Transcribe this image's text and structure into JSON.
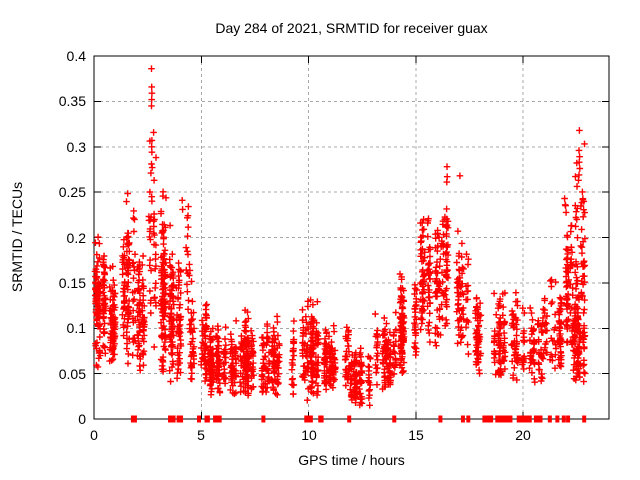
{
  "title": "Day 284 of 2021, SRMTID for receiver guax",
  "chart_data": {
    "type": "scatter",
    "title": "Day 284 of 2021, SRMTID for receiver guax",
    "xlabel": "GPS time / hours",
    "ylabel": "SRMTID / TECUs",
    "xlim": [
      0,
      24
    ],
    "ylim": [
      0,
      0.4
    ],
    "xticks": [
      0,
      5,
      10,
      15,
      20
    ],
    "yticks": [
      0,
      0.05,
      0.1,
      0.15,
      0.2,
      0.25,
      0.3,
      0.35,
      0.4
    ],
    "grid": "dashed",
    "grid_color": "#a8a8a8",
    "marker": "plus",
    "marker_color": "#ff0000",
    "axis_color": "#000000",
    "seed": 20211284,
    "density_bins": [
      [
        0.03,
        0.7,
        140,
        0.13,
        0.032,
        0.05,
        0.21
      ],
      [
        0.7,
        1.2,
        80,
        0.1,
        0.03,
        0.05,
        0.17
      ],
      [
        1.2,
        1.9,
        110,
        0.15,
        0.045,
        0.06,
        0.25
      ],
      [
        1.9,
        2.4,
        80,
        0.11,
        0.035,
        0.05,
        0.18
      ],
      [
        2.55,
        2.85,
        40,
        0.17,
        0.07,
        0.07,
        0.33
      ],
      [
        2.85,
        3.4,
        110,
        0.13,
        0.05,
        0.05,
        0.26
      ],
      [
        3.4,
        4.3,
        120,
        0.1,
        0.045,
        0.04,
        0.23
      ],
      [
        4.3,
        5.2,
        95,
        0.08,
        0.03,
        0.04,
        0.165
      ],
      [
        4.33,
        4.47,
        16,
        0.17,
        0.04,
        0.11,
        0.235
      ],
      [
        5.2,
        7.0,
        210,
        0.06,
        0.02,
        0.025,
        0.11
      ],
      [
        7.0,
        9.3,
        250,
        0.062,
        0.022,
        0.025,
        0.12
      ],
      [
        9.3,
        10.6,
        140,
        0.07,
        0.03,
        0.02,
        0.135
      ],
      [
        10.6,
        11.9,
        130,
        0.062,
        0.022,
        0.03,
        0.105
      ],
      [
        11.9,
        13.1,
        115,
        0.045,
        0.018,
        0.015,
        0.08
      ],
      [
        13.1,
        14.2,
        105,
        0.07,
        0.025,
        0.03,
        0.12
      ],
      [
        14.2,
        15.2,
        115,
        0.1,
        0.03,
        0.05,
        0.17
      ],
      [
        15.2,
        16.2,
        130,
        0.15,
        0.035,
        0.08,
        0.225
      ],
      [
        16.2,
        16.7,
        55,
        0.17,
        0.04,
        0.1,
        0.255
      ],
      [
        16.7,
        17.5,
        70,
        0.13,
        0.04,
        0.07,
        0.22
      ],
      [
        17.5,
        18.5,
        60,
        0.09,
        0.025,
        0.05,
        0.135
      ],
      [
        18.5,
        19.8,
        130,
        0.085,
        0.027,
        0.04,
        0.145
      ],
      [
        19.8,
        20.9,
        80,
        0.08,
        0.025,
        0.04,
        0.125
      ],
      [
        20.9,
        21.8,
        80,
        0.09,
        0.03,
        0.045,
        0.155
      ],
      [
        21.8,
        22.35,
        65,
        0.15,
        0.045,
        0.08,
        0.245
      ],
      [
        22.35,
        22.85,
        55,
        0.19,
        0.055,
        0.1,
        0.32
      ],
      [
        22.3,
        23.25,
        110,
        0.08,
        0.028,
        0.04,
        0.135
      ]
    ],
    "outlier_points": [
      [
        2.68,
        0.386
      ],
      [
        2.69,
        0.366
      ],
      [
        2.7,
        0.359
      ],
      [
        2.69,
        0.352
      ],
      [
        2.68,
        0.345
      ],
      [
        2.7,
        0.307
      ],
      [
        2.69,
        0.3
      ],
      [
        2.7,
        0.294
      ],
      [
        2.68,
        0.281
      ],
      [
        2.71,
        0.277
      ],
      [
        2.69,
        0.245
      ],
      [
        2.7,
        0.24
      ],
      [
        4.11,
        0.241
      ],
      [
        4.13,
        0.231
      ],
      [
        4.4,
        0.234
      ],
      [
        4.38,
        0.224
      ],
      [
        16.45,
        0.278
      ],
      [
        16.46,
        0.267
      ],
      [
        16.44,
        0.261
      ],
      [
        17.05,
        0.268
      ],
      [
        22.62,
        0.318
      ],
      [
        22.6,
        0.296
      ],
      [
        22.63,
        0.289
      ],
      [
        22.61,
        0.283
      ],
      [
        22.64,
        0.276
      ],
      [
        22.6,
        0.269
      ],
      [
        22.58,
        0.263
      ],
      [
        21.93,
        0.243
      ],
      [
        21.96,
        0.236
      ]
    ],
    "zero_runs": [
      [
        1.72,
        2.0
      ],
      [
        3.45,
        3.8
      ],
      [
        3.85,
        4.15
      ],
      [
        4.8,
        4.95
      ],
      [
        5.15,
        5.4
      ],
      [
        5.55,
        5.95
      ],
      [
        7.8,
        7.95
      ],
      [
        9.8,
        10.2
      ],
      [
        10.45,
        10.7
      ],
      [
        11.8,
        11.95
      ],
      [
        13.9,
        14.05
      ],
      [
        16.05,
        16.2
      ],
      [
        17.1,
        17.22
      ],
      [
        17.35,
        17.5
      ],
      [
        18.1,
        18.6
      ],
      [
        18.7,
        19.5
      ],
      [
        19.7,
        20.4
      ],
      [
        20.5,
        20.9
      ],
      [
        21.15,
        21.3
      ],
      [
        21.5,
        21.65
      ],
      [
        21.8,
        21.9
      ],
      [
        22.0,
        22.1
      ],
      [
        22.75,
        22.85
      ]
    ]
  }
}
